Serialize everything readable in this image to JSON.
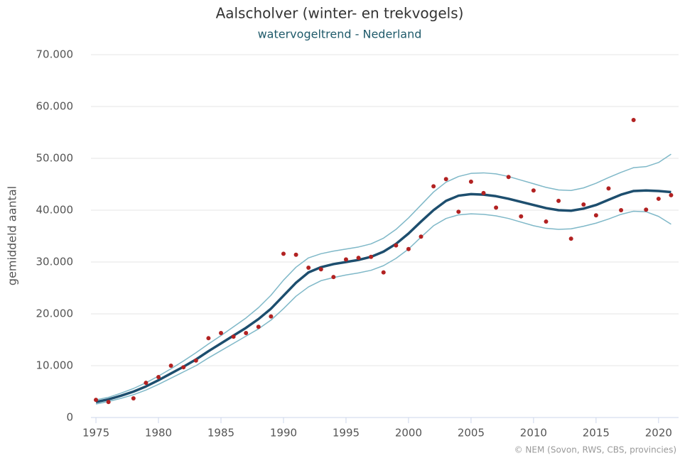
{
  "chart_data": {
    "type": "line",
    "title": "Aalscholver (winter- en trekvogels)",
    "subtitle": "watervogeltrend - Nederland",
    "y_label": "gemiddeld aantal",
    "credit": "© NEM (Sovon, RWS, CBS, provincies)",
    "x": [
      1975,
      1976,
      1977,
      1978,
      1979,
      1980,
      1981,
      1982,
      1983,
      1984,
      1985,
      1986,
      1987,
      1988,
      1989,
      1990,
      1991,
      1992,
      1993,
      1994,
      1995,
      1996,
      1997,
      1998,
      1999,
      2000,
      2001,
      2002,
      2003,
      2004,
      2005,
      2006,
      2007,
      2008,
      2009,
      2010,
      2011,
      2012,
      2013,
      2014,
      2015,
      2016,
      2017,
      2018,
      2019,
      2020,
      2021
    ],
    "series": [
      {
        "kind": "line",
        "color": "#7fb8c8",
        "width": 1.5,
        "values": [
          3400,
          3900,
          4700,
          5600,
          6700,
          8000,
          9400,
          10900,
          12500,
          14200,
          15800,
          17500,
          19200,
          21200,
          23600,
          26500,
          29000,
          30800,
          31600,
          32100,
          32500,
          32900,
          33500,
          34600,
          36300,
          38500,
          41000,
          43500,
          45400,
          46500,
          47100,
          47200,
          47000,
          46500,
          45800,
          45100,
          44400,
          43900,
          43800,
          44300,
          45200,
          46300,
          47300,
          48200,
          48400,
          49200,
          50800
        ]
      },
      {
        "kind": "line",
        "color": "#7fb8c8",
        "width": 1.5,
        "values": [
          2600,
          3100,
          3700,
          4400,
          5300,
          6400,
          7600,
          8800,
          10000,
          11500,
          12900,
          14300,
          15700,
          17100,
          18800,
          21000,
          23400,
          25200,
          26400,
          27000,
          27500,
          27900,
          28400,
          29300,
          30700,
          32500,
          34800,
          37000,
          38400,
          39100,
          39300,
          39200,
          38900,
          38400,
          37700,
          37000,
          36500,
          36300,
          36400,
          36900,
          37500,
          38300,
          39200,
          39800,
          39700,
          38800,
          37300
        ]
      },
      {
        "kind": "line",
        "color": "#1d4e6e",
        "width": 3.5,
        "values": [
          3000,
          3500,
          4200,
          5000,
          6000,
          7200,
          8500,
          9800,
          11200,
          12800,
          14300,
          15800,
          17300,
          19000,
          21000,
          23500,
          26000,
          28000,
          29000,
          29600,
          30000,
          30400,
          31000,
          32000,
          33500,
          35500,
          37800,
          40000,
          41800,
          42800,
          43100,
          43000,
          42700,
          42200,
          41600,
          41000,
          40400,
          40000,
          39900,
          40300,
          41000,
          42000,
          43000,
          43700,
          43800,
          43700,
          43500
        ]
      },
      {
        "kind": "markers",
        "color": "#b22222",
        "values": [
          3400,
          3000,
          null,
          3700,
          6700,
          7800,
          10000,
          9700,
          11000,
          15300,
          16300,
          15600,
          16300,
          17500,
          19500,
          31600,
          31400,
          28900,
          28600,
          27100,
          30500,
          30800,
          31000,
          28000,
          33200,
          32500,
          34900,
          44600,
          46000,
          39700,
          45500,
          43300,
          40500,
          46400,
          38800,
          43800,
          37800,
          41800,
          34500,
          41100,
          39000,
          44200,
          40000,
          57400,
          40100,
          42200,
          42900
        ]
      }
    ],
    "xlim": [
      1974.6,
      2021.6
    ],
    "ylim": [
      0,
      70000
    ],
    "xticks": [
      1975,
      1980,
      1985,
      1990,
      1995,
      2000,
      2005,
      2010,
      2015,
      2020
    ],
    "yticks": [
      0,
      {
        "value": 10000,
        "label": "10.000"
      },
      {
        "value": 20000,
        "label": "20.000"
      },
      {
        "value": 30000,
        "label": "30.000"
      },
      {
        "value": 40000,
        "label": "40.000"
      },
      {
        "value": 50000,
        "label": "50.000"
      },
      {
        "value": 60000,
        "label": "60.000"
      },
      {
        "value": 70000,
        "label": "70.000"
      }
    ],
    "grid": true
  }
}
